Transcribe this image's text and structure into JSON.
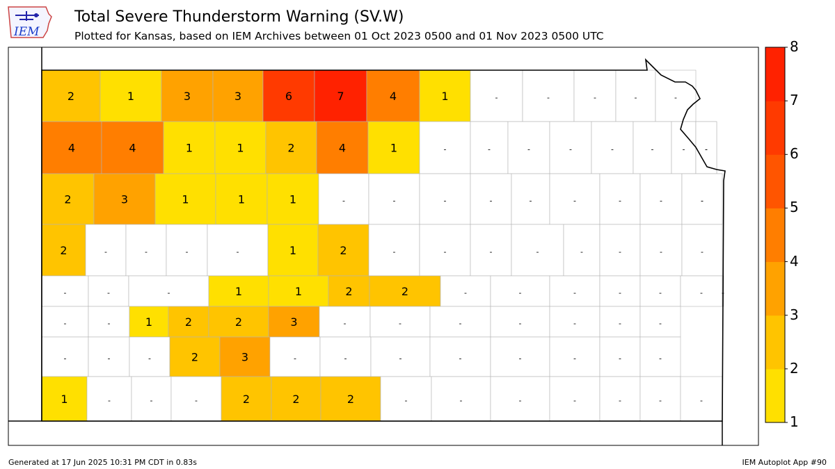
{
  "header": {
    "title": "Total Severe Thunderstorm Warning (SV.W)",
    "subtitle": "Plotted for Kansas, based on IEM Archives  between 01 Oct 2023 0500 and 01 Nov 2023 0500 UTC",
    "logo_text": "IEM"
  },
  "footer": {
    "generated": "Generated at 17 Jun 2025 10:31 PM CDT in 0.83s",
    "app": "IEM Autoplot App #90"
  },
  "legend": {
    "ticks": [
      "1",
      "2",
      "3",
      "4",
      "5",
      "6",
      "7",
      "8"
    ],
    "colors": [
      "#ffe000",
      "#ffc400",
      "#ffa200",
      "#ff7e00",
      "#ff5500",
      "#ff3a00",
      "#ff2200"
    ]
  },
  "chart_data": {
    "type": "choropleth",
    "region": "Kansas counties",
    "scale_min": 1,
    "scale_max": 8,
    "county_rows": [
      [
        "2",
        "1",
        "3",
        "3",
        "6",
        "7",
        "4",
        "1",
        "-",
        "-",
        "-",
        "-",
        "-"
      ],
      [
        "4",
        "4",
        "1",
        "1",
        "2",
        "4",
        "1",
        "-",
        "-",
        "-",
        "-",
        "-",
        "-",
        "-",
        "-",
        "-"
      ],
      [
        "2",
        "3",
        "1",
        "1",
        "1",
        "-",
        "-",
        "-",
        "-",
        "-",
        "-",
        "-",
        "-",
        "-",
        "-"
      ],
      [
        "2",
        "-",
        "-",
        "-",
        "-",
        "1",
        "2",
        "-",
        "-",
        "-",
        "-",
        "-",
        "-",
        "-",
        "-"
      ],
      [
        "-",
        "-",
        "-",
        "1",
        "1",
        "2",
        "2",
        "-",
        "-",
        "-",
        "-",
        "-",
        "-",
        "-"
      ],
      [
        "-",
        "-",
        "1",
        "2",
        "2",
        "3",
        "-",
        "-",
        "-",
        "-",
        "-",
        "-",
        "-"
      ],
      [
        "-",
        "-",
        "-",
        "2",
        "3",
        "-",
        "-",
        "-",
        "-",
        "-",
        "-",
        "-",
        "-"
      ],
      [
        "1",
        "-",
        "-",
        "-",
        "2",
        "2",
        "2",
        "-",
        "-",
        "-",
        "-",
        "-",
        "-",
        "-"
      ]
    ]
  }
}
